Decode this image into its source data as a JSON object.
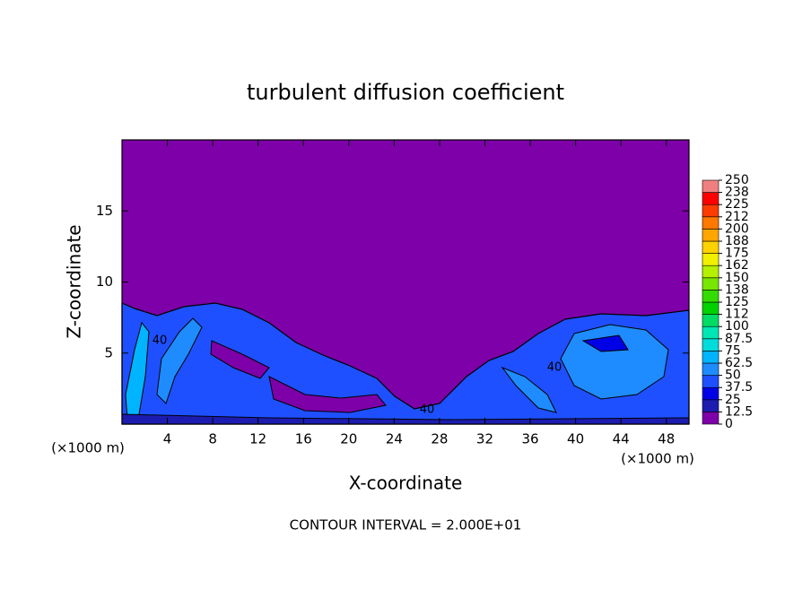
{
  "chart_data": {
    "type": "contour",
    "title": "turbulent diffusion coefficient",
    "xlabel": "X-coordinate",
    "ylabel": "Z-coordinate",
    "x_unit": "(×1000 m)",
    "y_unit": "(×1000 m)",
    "xlim": [
      0,
      50
    ],
    "ylim": [
      0,
      20
    ],
    "xticks": [
      4,
      8,
      12,
      16,
      20,
      24,
      28,
      32,
      36,
      40,
      44,
      48
    ],
    "yticks": [
      5,
      10,
      15
    ],
    "colorbar": {
      "levels": [
        0,
        12.5,
        25,
        37.5,
        50,
        62.5,
        75,
        87.5,
        100,
        112,
        125,
        138,
        150,
        162,
        175,
        188,
        200,
        212,
        225,
        238,
        250
      ],
      "colors": [
        "#7d00a8",
        "#1c1cb0",
        "#0000e6",
        "#1e50ff",
        "#1e8cff",
        "#00b4ff",
        "#00dcdc",
        "#00e6b4",
        "#00dc64",
        "#00d200",
        "#32dc00",
        "#78e600",
        "#b4f000",
        "#f0f000",
        "#ffd200",
        "#ffa500",
        "#ff7800",
        "#ff3c00",
        "#ff0000",
        "#f08080"
      ]
    },
    "contour_labels": [
      "40",
      "40",
      "40"
    ],
    "annotation": "CONTOUR INTERVAL = 2.000E+01"
  }
}
